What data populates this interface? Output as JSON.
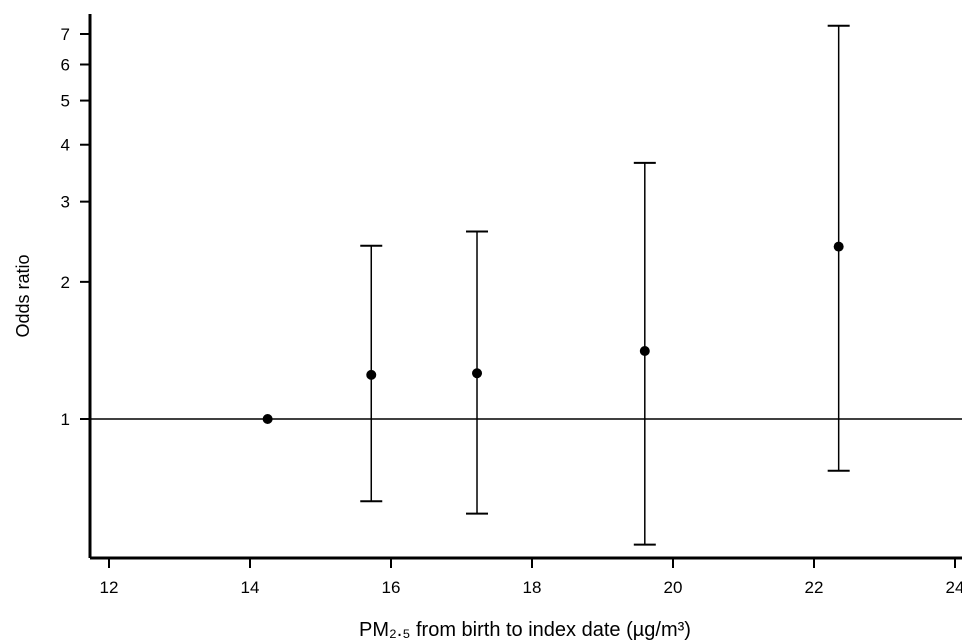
{
  "chart_data": {
    "type": "scatter",
    "title": "",
    "xlabel": "PM₂.₅ from birth to index date (µg/m³)",
    "ylabel": "Odds ratio",
    "x_scale": "linear",
    "y_scale": "log",
    "xlim": [
      11.8,
      24.1
    ],
    "ylim": [
      0.5,
      8.0
    ],
    "x_ticks": [
      12,
      14,
      16,
      18,
      20,
      22,
      24
    ],
    "y_ticks": [
      1,
      2,
      3,
      4,
      5,
      6,
      7
    ],
    "reference_line_y": 1,
    "grid": false,
    "legend": "none",
    "series": [
      {
        "points": [
          {
            "x": 14.25,
            "y": 1.0,
            "lower": null,
            "upper": null
          },
          {
            "x": 15.72,
            "y": 1.25,
            "lower": 0.66,
            "upper": 2.4
          },
          {
            "x": 17.22,
            "y": 1.26,
            "lower": 0.62,
            "upper": 2.58
          },
          {
            "x": 19.6,
            "y": 1.41,
            "lower": 0.53,
            "upper": 3.65
          },
          {
            "x": 22.35,
            "y": 2.39,
            "lower": 0.77,
            "upper": 7.3
          }
        ]
      }
    ]
  }
}
